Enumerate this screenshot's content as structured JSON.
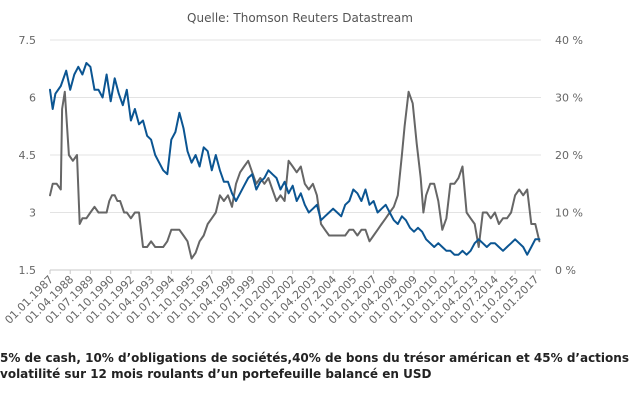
{
  "chart_data": {
    "type": "line",
    "subtitle": "Quelle: Thomson Reuters Datastream",
    "x_tick_labels": [
      "01.01.1987",
      "01.04.1988",
      "01.07.1989",
      "01.10.1990",
      "01.01.1992",
      "01.04.1993",
      "01.07.1994",
      "01.10.1995",
      "01.01.1997",
      "01.04.1998",
      "01.07.1999",
      "01.10.2000",
      "01.01.2002",
      "01.04.2003",
      "01.07.2004",
      "01.10.2005",
      "01.01.2007",
      "01.04.2008",
      "01.07.2009",
      "01.10.2010",
      "01.01.2012",
      "01.04.2013",
      "01.07.2014",
      "01.10.2015",
      "01.01.2017"
    ],
    "y_left": {
      "ticks": [
        "1.5",
        "3",
        "4.5",
        "6",
        "7.5"
      ],
      "range": [
        1.5,
        7.5
      ]
    },
    "y_right": {
      "ticks": [
        "0 %",
        "10 %",
        "20 %",
        "30 %",
        "40 %"
      ],
      "range": [
        0,
        40
      ]
    },
    "legend_lines": [
      "5% de cash, 10% d’obligations de sociétés,40% de bons du trésor américan et 45% d’actions",
      "volatilité sur 12 mois roulants d’un portefeuille balancé en USD"
    ],
    "series": [
      {
        "name": "5% de cash, 10% d’obligations de sociétés,40% de bons du trésor américan et 45% d’actions",
        "axis": "left",
        "color": "#0b5592",
        "points": [
          [
            "1987-01",
            6.2
          ],
          [
            "1987-03",
            5.7
          ],
          [
            "1987-05",
            6.1
          ],
          [
            "1987-09",
            6.3
          ],
          [
            "1988-01",
            6.7
          ],
          [
            "1988-04",
            6.2
          ],
          [
            "1988-07",
            6.6
          ],
          [
            "1988-10",
            6.8
          ],
          [
            "1989-01",
            6.6
          ],
          [
            "1989-04",
            6.9
          ],
          [
            "1989-07",
            6.8
          ],
          [
            "1989-10",
            6.2
          ],
          [
            "1990-01",
            6.2
          ],
          [
            "1990-04",
            6.0
          ],
          [
            "1990-07",
            6.6
          ],
          [
            "1990-10",
            5.9
          ],
          [
            "1991-01",
            6.5
          ],
          [
            "1991-04",
            6.1
          ],
          [
            "1991-07",
            5.8
          ],
          [
            "1991-10",
            6.2
          ],
          [
            "1992-01",
            5.4
          ],
          [
            "1992-04",
            5.7
          ],
          [
            "1992-07",
            5.3
          ],
          [
            "1992-10",
            5.4
          ],
          [
            "1993-01",
            5.0
          ],
          [
            "1993-04",
            4.9
          ],
          [
            "1993-07",
            4.5
          ],
          [
            "1993-10",
            4.3
          ],
          [
            "1994-01",
            4.1
          ],
          [
            "1994-04",
            4.0
          ],
          [
            "1994-07",
            4.9
          ],
          [
            "1994-10",
            5.1
          ],
          [
            "1995-01",
            5.6
          ],
          [
            "1995-04",
            5.2
          ],
          [
            "1995-07",
            4.6
          ],
          [
            "1995-10",
            4.3
          ],
          [
            "1996-01",
            4.5
          ],
          [
            "1996-04",
            4.2
          ],
          [
            "1996-07",
            4.7
          ],
          [
            "1996-10",
            4.6
          ],
          [
            "1997-01",
            4.1
          ],
          [
            "1997-04",
            4.5
          ],
          [
            "1997-07",
            4.1
          ],
          [
            "1997-10",
            3.8
          ],
          [
            "1998-01",
            3.8
          ],
          [
            "1998-04",
            3.5
          ],
          [
            "1998-07",
            3.3
          ],
          [
            "1998-10",
            3.5
          ],
          [
            "1999-01",
            3.7
          ],
          [
            "1999-04",
            3.9
          ],
          [
            "1999-07",
            4.0
          ],
          [
            "1999-10",
            3.6
          ],
          [
            "2000-01",
            3.8
          ],
          [
            "2000-04",
            3.9
          ],
          [
            "2000-07",
            4.1
          ],
          [
            "2000-10",
            4.0
          ],
          [
            "2001-01",
            3.9
          ],
          [
            "2001-04",
            3.6
          ],
          [
            "2001-07",
            3.8
          ],
          [
            "2001-10",
            3.5
          ],
          [
            "2002-01",
            3.7
          ],
          [
            "2002-04",
            3.3
          ],
          [
            "2002-07",
            3.5
          ],
          [
            "2002-10",
            3.2
          ],
          [
            "2003-01",
            3.0
          ],
          [
            "2003-04",
            3.1
          ],
          [
            "2003-07",
            3.2
          ],
          [
            "2003-10",
            2.8
          ],
          [
            "2004-01",
            2.9
          ],
          [
            "2004-04",
            3.0
          ],
          [
            "2004-07",
            3.1
          ],
          [
            "2004-10",
            3.0
          ],
          [
            "2005-01",
            2.9
          ],
          [
            "2005-04",
            3.2
          ],
          [
            "2005-07",
            3.3
          ],
          [
            "2005-10",
            3.6
          ],
          [
            "2006-01",
            3.5
          ],
          [
            "2006-04",
            3.3
          ],
          [
            "2006-07",
            3.6
          ],
          [
            "2006-10",
            3.2
          ],
          [
            "2007-01",
            3.3
          ],
          [
            "2007-04",
            3.0
          ],
          [
            "2007-07",
            3.1
          ],
          [
            "2007-10",
            3.2
          ],
          [
            "2008-01",
            3.0
          ],
          [
            "2008-04",
            2.8
          ],
          [
            "2008-07",
            2.7
          ],
          [
            "2008-10",
            2.9
          ],
          [
            "2009-01",
            2.8
          ],
          [
            "2009-04",
            2.6
          ],
          [
            "2009-07",
            2.5
          ],
          [
            "2009-10",
            2.6
          ],
          [
            "2010-01",
            2.5
          ],
          [
            "2010-04",
            2.3
          ],
          [
            "2010-07",
            2.2
          ],
          [
            "2010-10",
            2.1
          ],
          [
            "2011-01",
            2.2
          ],
          [
            "2011-04",
            2.1
          ],
          [
            "2011-07",
            2.0
          ],
          [
            "2011-10",
            2.0
          ],
          [
            "2012-01",
            1.9
          ],
          [
            "2012-04",
            1.9
          ],
          [
            "2012-07",
            2.0
          ],
          [
            "2012-10",
            1.9
          ],
          [
            "2013-01",
            2.0
          ],
          [
            "2013-04",
            2.2
          ],
          [
            "2013-07",
            2.3
          ],
          [
            "2013-10",
            2.2
          ],
          [
            "2014-01",
            2.1
          ],
          [
            "2014-04",
            2.2
          ],
          [
            "2014-07",
            2.2
          ],
          [
            "2014-10",
            2.1
          ],
          [
            "2015-01",
            2.0
          ],
          [
            "2015-04",
            2.1
          ],
          [
            "2015-07",
            2.2
          ],
          [
            "2015-10",
            2.3
          ],
          [
            "2016-01",
            2.2
          ],
          [
            "2016-04",
            2.1
          ],
          [
            "2016-07",
            1.9
          ],
          [
            "2016-10",
            2.1
          ],
          [
            "2017-01",
            2.3
          ],
          [
            "2017-04",
            2.3
          ]
        ]
      },
      {
        "name": "volatilité sur 12 mois roulants d’un portefeuille balancé en USD",
        "axis": "right",
        "color": "#666666",
        "points": [
          [
            "1987-01",
            13
          ],
          [
            "1987-03",
            15
          ],
          [
            "1987-06",
            15
          ],
          [
            "1987-09",
            14
          ],
          [
            "1987-10",
            28
          ],
          [
            "1987-12",
            31
          ],
          [
            "1988-03",
            20
          ],
          [
            "1988-06",
            19
          ],
          [
            "1988-09",
            20
          ],
          [
            "1988-11",
            8
          ],
          [
            "1989-01",
            9
          ],
          [
            "1989-04",
            9
          ],
          [
            "1989-07",
            10
          ],
          [
            "1989-10",
            11
          ],
          [
            "1990-01",
            10
          ],
          [
            "1990-04",
            10
          ],
          [
            "1990-07",
            10
          ],
          [
            "1990-09",
            12
          ],
          [
            "1990-11",
            13
          ],
          [
            "1991-01",
            13
          ],
          [
            "1991-03",
            12
          ],
          [
            "1991-05",
            12
          ],
          [
            "1991-08",
            10
          ],
          [
            "1991-10",
            10
          ],
          [
            "1992-01",
            9
          ],
          [
            "1992-04",
            10
          ],
          [
            "1992-07",
            10
          ],
          [
            "1992-10",
            4
          ],
          [
            "1993-01",
            4
          ],
          [
            "1993-04",
            5
          ],
          [
            "1993-07",
            4
          ],
          [
            "1993-10",
            4
          ],
          [
            "1994-01",
            4
          ],
          [
            "1994-04",
            5
          ],
          [
            "1994-07",
            7
          ],
          [
            "1994-10",
            7
          ],
          [
            "1995-01",
            7
          ],
          [
            "1995-04",
            6
          ],
          [
            "1995-07",
            5
          ],
          [
            "1995-10",
            2
          ],
          [
            "1996-01",
            3
          ],
          [
            "1996-04",
            5
          ],
          [
            "1996-07",
            6
          ],
          [
            "1996-10",
            8
          ],
          [
            "1997-01",
            9
          ],
          [
            "1997-04",
            10
          ],
          [
            "1997-07",
            13
          ],
          [
            "1997-10",
            12
          ],
          [
            "1998-01",
            13
          ],
          [
            "1998-04",
            11
          ],
          [
            "1998-07",
            15
          ],
          [
            "1998-10",
            17
          ],
          [
            "1999-01",
            18
          ],
          [
            "1999-04",
            19
          ],
          [
            "1999-07",
            17
          ],
          [
            "1999-10",
            15
          ],
          [
            "2000-01",
            16
          ],
          [
            "2000-04",
            15
          ],
          [
            "2000-07",
            16
          ],
          [
            "2000-10",
            14
          ],
          [
            "2001-01",
            12
          ],
          [
            "2001-04",
            13
          ],
          [
            "2001-07",
            12
          ],
          [
            "2001-10",
            19
          ],
          [
            "2002-01",
            18
          ],
          [
            "2002-04",
            17
          ],
          [
            "2002-07",
            18
          ],
          [
            "2002-10",
            15
          ],
          [
            "2003-01",
            14
          ],
          [
            "2003-04",
            15
          ],
          [
            "2003-07",
            13
          ],
          [
            "2003-10",
            8
          ],
          [
            "2004-01",
            7
          ],
          [
            "2004-04",
            6
          ],
          [
            "2004-07",
            6
          ],
          [
            "2004-10",
            6
          ],
          [
            "2005-01",
            6
          ],
          [
            "2005-04",
            6
          ],
          [
            "2005-07",
            7
          ],
          [
            "2005-10",
            7
          ],
          [
            "2006-01",
            6
          ],
          [
            "2006-04",
            7
          ],
          [
            "2006-07",
            7
          ],
          [
            "2006-10",
            5
          ],
          [
            "2007-01",
            6
          ],
          [
            "2007-04",
            7
          ],
          [
            "2007-07",
            8
          ],
          [
            "2007-10",
            9
          ],
          [
            "2008-01",
            10
          ],
          [
            "2008-04",
            11
          ],
          [
            "2008-07",
            13
          ],
          [
            "2008-10",
            20
          ],
          [
            "2008-12",
            25
          ],
          [
            "2009-03",
            31
          ],
          [
            "2009-06",
            29
          ],
          [
            "2009-09",
            22
          ],
          [
            "2009-12",
            16
          ],
          [
            "2010-02",
            10
          ],
          [
            "2010-04",
            13
          ],
          [
            "2010-07",
            15
          ],
          [
            "2010-10",
            15
          ],
          [
            "2011-01",
            12
          ],
          [
            "2011-04",
            7
          ],
          [
            "2011-07",
            9
          ],
          [
            "2011-10",
            15
          ],
          [
            "2012-01",
            15
          ],
          [
            "2012-04",
            16
          ],
          [
            "2012-07",
            18
          ],
          [
            "2012-10",
            10
          ],
          [
            "2013-01",
            9
          ],
          [
            "2013-04",
            8
          ],
          [
            "2013-07",
            4
          ],
          [
            "2013-10",
            10
          ],
          [
            "2014-01",
            10
          ],
          [
            "2014-04",
            9
          ],
          [
            "2014-07",
            10
          ],
          [
            "2014-10",
            8
          ],
          [
            "2015-01",
            9
          ],
          [
            "2015-04",
            9
          ],
          [
            "2015-07",
            10
          ],
          [
            "2015-10",
            13
          ],
          [
            "2016-01",
            14
          ],
          [
            "2016-04",
            13
          ],
          [
            "2016-07",
            14
          ],
          [
            "2016-10",
            8
          ],
          [
            "2017-01",
            8
          ],
          [
            "2017-04",
            5
          ]
        ]
      }
    ],
    "grid": "horizontal"
  }
}
